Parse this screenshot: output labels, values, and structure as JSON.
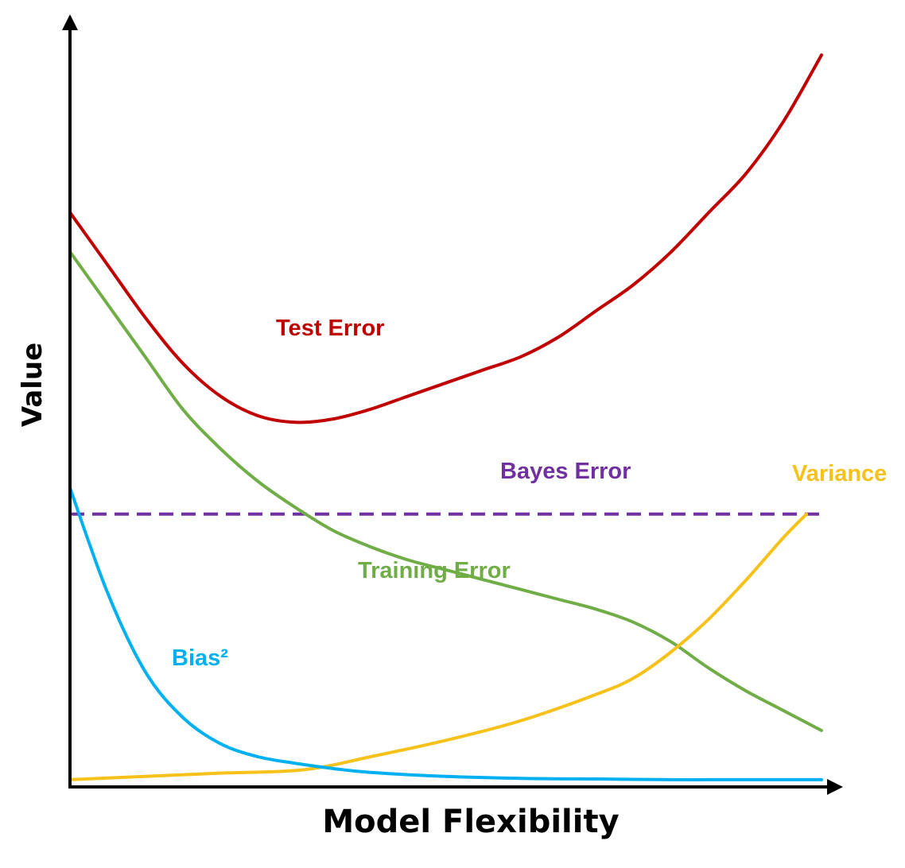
{
  "chart_data": {
    "type": "line",
    "title": "",
    "xlabel": "Model Flexibility",
    "ylabel": "Value",
    "xlim": [
      0,
      1
    ],
    "ylim": [
      0,
      1
    ],
    "grid": false,
    "legend": "none",
    "series": [
      {
        "name": "Test Error",
        "color": "#C00000",
        "style": "solid",
        "x": [
          0,
          0.05,
          0.1,
          0.15,
          0.2,
          0.25,
          0.3,
          0.35,
          0.4,
          0.45,
          0.5,
          0.55,
          0.6,
          0.65,
          0.7,
          0.75,
          0.8,
          0.85,
          0.9,
          0.95,
          1.0
        ],
        "values": [
          0.87,
          0.79,
          0.71,
          0.64,
          0.59,
          0.56,
          0.55,
          0.555,
          0.57,
          0.59,
          0.61,
          0.63,
          0.65,
          0.68,
          0.72,
          0.76,
          0.81,
          0.87,
          0.93,
          1.01,
          1.11
        ]
      },
      {
        "name": "Training Error",
        "color": "#70AD47",
        "style": "solid",
        "x": [
          0,
          0.05,
          0.1,
          0.15,
          0.2,
          0.25,
          0.3,
          0.35,
          0.4,
          0.45,
          0.5,
          0.55,
          0.6,
          0.65,
          0.7,
          0.75,
          0.8,
          0.85,
          0.9,
          0.95,
          1.0
        ],
        "values": [
          0.81,
          0.73,
          0.65,
          0.57,
          0.51,
          0.46,
          0.42,
          0.385,
          0.36,
          0.34,
          0.325,
          0.31,
          0.295,
          0.28,
          0.265,
          0.245,
          0.215,
          0.175,
          0.14,
          0.11,
          0.08
        ]
      },
      {
        "name": "Bayes Error",
        "color": "#7030A0",
        "style": "dashed",
        "x": [
          0,
          1.0
        ],
        "values": [
          0.41,
          0.41
        ]
      },
      {
        "name": "Variance",
        "color": "#F5C11A",
        "style": "solid",
        "x": [
          0,
          0.1,
          0.2,
          0.31,
          0.4,
          0.5,
          0.6,
          0.7,
          0.75,
          0.8,
          0.85,
          0.9,
          0.95,
          0.98
        ],
        "values": [
          0.005,
          0.01,
          0.015,
          0.02,
          0.04,
          0.065,
          0.095,
          0.135,
          0.16,
          0.2,
          0.25,
          0.31,
          0.375,
          0.41
        ]
      },
      {
        "name": "Bias²",
        "color": "#00B0F0",
        "style": "solid",
        "x": [
          0,
          0.05,
          0.1,
          0.15,
          0.2,
          0.25,
          0.3,
          0.35,
          0.4,
          0.5,
          0.6,
          0.7,
          0.8,
          0.9,
          1.0
        ],
        "values": [
          0.45,
          0.29,
          0.17,
          0.1,
          0.06,
          0.04,
          0.03,
          0.022,
          0.016,
          0.01,
          0.007,
          0.006,
          0.005,
          0.005,
          0.005
        ]
      }
    ]
  }
}
